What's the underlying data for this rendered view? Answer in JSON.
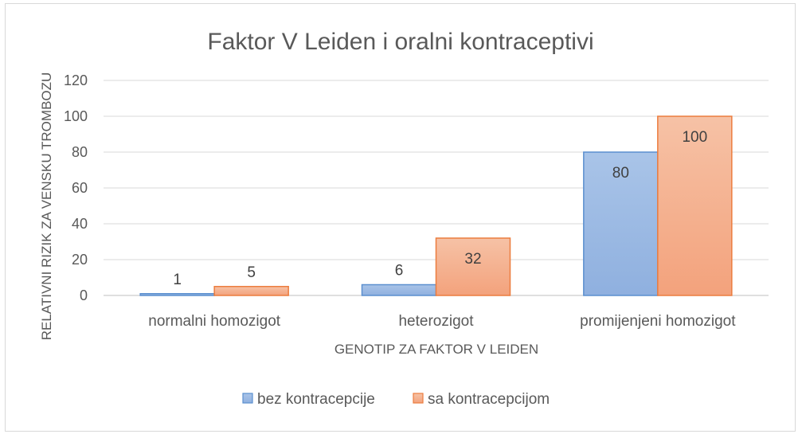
{
  "chart_data": {
    "type": "bar",
    "title": "Faktor V Leiden i oralni kontraceptivi",
    "xlabel": "GENOTIP ZA FAKTOR V LEIDEN",
    "ylabel": "RELATIVNI RIZIK ZA VENSKU TROMBOZU",
    "categories": [
      "normalni homozigot",
      "heterozigot",
      "promijenjeni homozigot"
    ],
    "series": [
      {
        "name": "bez kontracepcije",
        "values": [
          1,
          6,
          80
        ],
        "fill_top": "#a9c4e8",
        "fill_bottom": "#8fb0df",
        "stroke": "#5b8fcf"
      },
      {
        "name": "sa kontracepcijom",
        "values": [
          5,
          32,
          100
        ],
        "fill_top": "#f6c2a6",
        "fill_bottom": "#f3a27c",
        "stroke": "#ec7d3f"
      }
    ],
    "ylim": [
      0,
      120
    ],
    "yticks": [
      0,
      20,
      40,
      60,
      80,
      100,
      120
    ],
    "grid": true,
    "legend_position": "bottom"
  }
}
